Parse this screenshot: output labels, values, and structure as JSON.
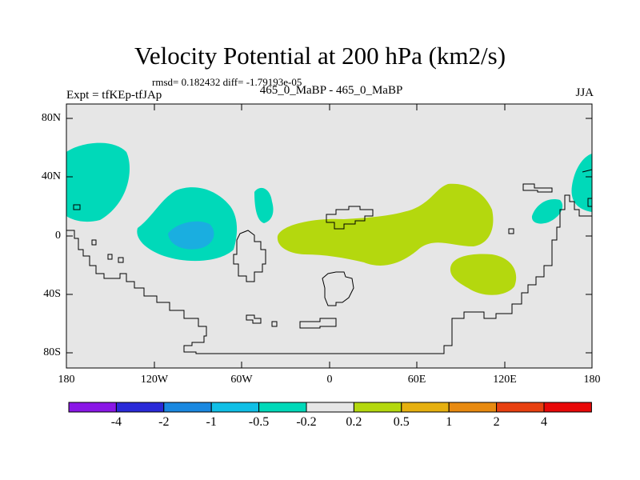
{
  "map": {
    "title": "Velocity Potential at 200 hPa (km2/s)",
    "stats": "rmsd= 0.182432  diff= -1.79193e-05",
    "left_label": "Expt = tfKEp-tfJAp",
    "center_label": "465_0_MaBP - 465_0_MaBP",
    "right_label": "JJA",
    "lat_ticks": [
      "80N",
      "40N",
      "0",
      "40S",
      "80S"
    ],
    "lon_ticks": [
      "180",
      "120W",
      "60W",
      "0",
      "60E",
      "120E",
      "180"
    ],
    "colors": {
      "background": "#e6e6e6",
      "neg_light": "#00d9b9",
      "neg_mid": "#1aaee0",
      "pos_light": "#b4d80e"
    }
  },
  "colorbar": {
    "labels": [
      "-4",
      "-2",
      "-1",
      "-0.5",
      "-0.2",
      "0.2",
      "0.5",
      "1",
      "2",
      "4"
    ],
    "colors": [
      "#8a17e6",
      "#2a2ad8",
      "#1a88e0",
      "#10bfe6",
      "#00d9b9",
      "#e6e6e6",
      "#b4d80e",
      "#e6b010",
      "#e88a10",
      "#e84010",
      "#e80808"
    ]
  }
}
